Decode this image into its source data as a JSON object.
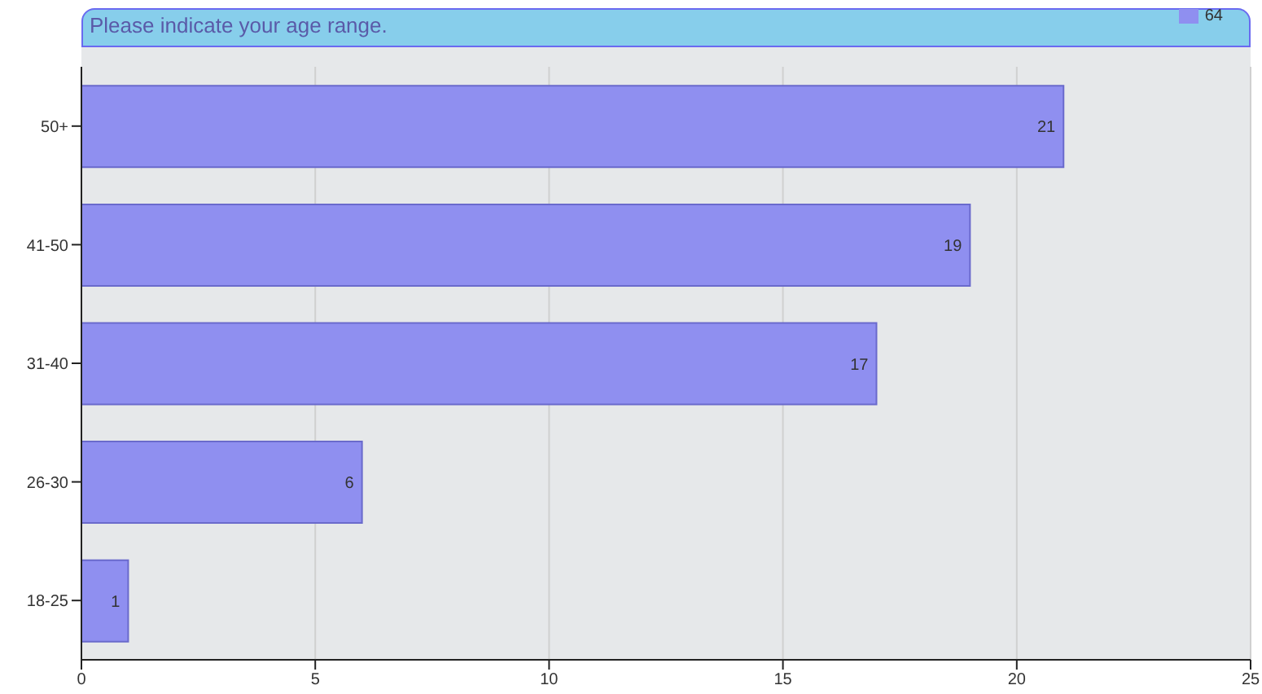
{
  "chart_data": {
    "type": "bar",
    "orientation": "horizontal",
    "title": "Please indicate your age range.",
    "categories": [
      "50+",
      "41-50",
      "31-40",
      "26-30",
      "18-25"
    ],
    "series": [
      {
        "name": "64",
        "color": "#8f8ff0",
        "values": [
          21,
          19,
          17,
          6,
          1
        ]
      }
    ],
    "xlim": [
      0,
      25
    ],
    "xticks": [
      0,
      5,
      10,
      15,
      20,
      25
    ],
    "grid": "x",
    "legend": "top right",
    "data_labels": true
  }
}
